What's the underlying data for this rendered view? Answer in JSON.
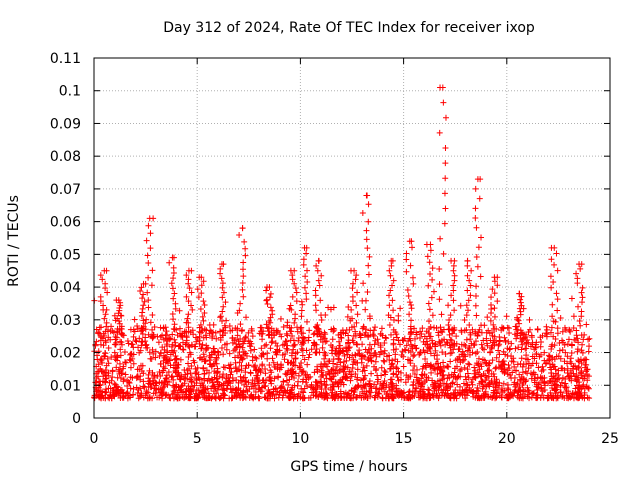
{
  "chart_data": {
    "type": "scatter",
    "title": "Day 312 of 2024, Rate Of TEC Index for receiver ixop",
    "xlabel": "GPS time / hours",
    "ylabel": "ROTI / TECUs",
    "xlim": [
      0,
      25
    ],
    "ylim": [
      0,
      0.11
    ],
    "xticks": [
      "0",
      "5",
      "10",
      "15",
      "20",
      "25"
    ],
    "xtick_values": [
      0,
      5,
      10,
      15,
      20,
      25
    ],
    "yticks": [
      "0",
      "0.01",
      "0.02",
      "0.03",
      "0.04",
      "0.05",
      "0.06",
      "0.07",
      "0.08",
      "0.09",
      "0.1",
      "0.11"
    ],
    "ytick_values": [
      0,
      0.01,
      0.02,
      0.03,
      0.04,
      0.05,
      0.06,
      0.07,
      0.08,
      0.09,
      0.1,
      0.11
    ],
    "grid": true,
    "marker": "+",
    "series": [
      {
        "name": "ixop",
        "color": "#ff0000",
        "x_range": [
          0,
          24
        ],
        "baseline_range": [
          0.006,
          0.028
        ],
        "peaks": [
          {
            "x": 0.5,
            "y": 0.045
          },
          {
            "x": 1.2,
            "y": 0.036
          },
          {
            "x": 2.4,
            "y": 0.041
          },
          {
            "x": 2.7,
            "y": 0.061
          },
          {
            "x": 3.8,
            "y": 0.049
          },
          {
            "x": 4.6,
            "y": 0.045
          },
          {
            "x": 5.2,
            "y": 0.043
          },
          {
            "x": 6.2,
            "y": 0.047
          },
          {
            "x": 7.2,
            "y": 0.058
          },
          {
            "x": 8.5,
            "y": 0.04
          },
          {
            "x": 9.7,
            "y": 0.045
          },
          {
            "x": 10.2,
            "y": 0.052
          },
          {
            "x": 10.9,
            "y": 0.048
          },
          {
            "x": 12.6,
            "y": 0.045
          },
          {
            "x": 13.2,
            "y": 0.068
          },
          {
            "x": 14.4,
            "y": 0.048
          },
          {
            "x": 15.3,
            "y": 0.054
          },
          {
            "x": 16.3,
            "y": 0.053
          },
          {
            "x": 16.9,
            "y": 0.101
          },
          {
            "x": 17.3,
            "y": 0.048
          },
          {
            "x": 18.1,
            "y": 0.048
          },
          {
            "x": 18.6,
            "y": 0.073
          },
          {
            "x": 19.4,
            "y": 0.043
          },
          {
            "x": 20.6,
            "y": 0.038
          },
          {
            "x": 22.3,
            "y": 0.052
          },
          {
            "x": 23.5,
            "y": 0.047
          }
        ]
      }
    ]
  }
}
